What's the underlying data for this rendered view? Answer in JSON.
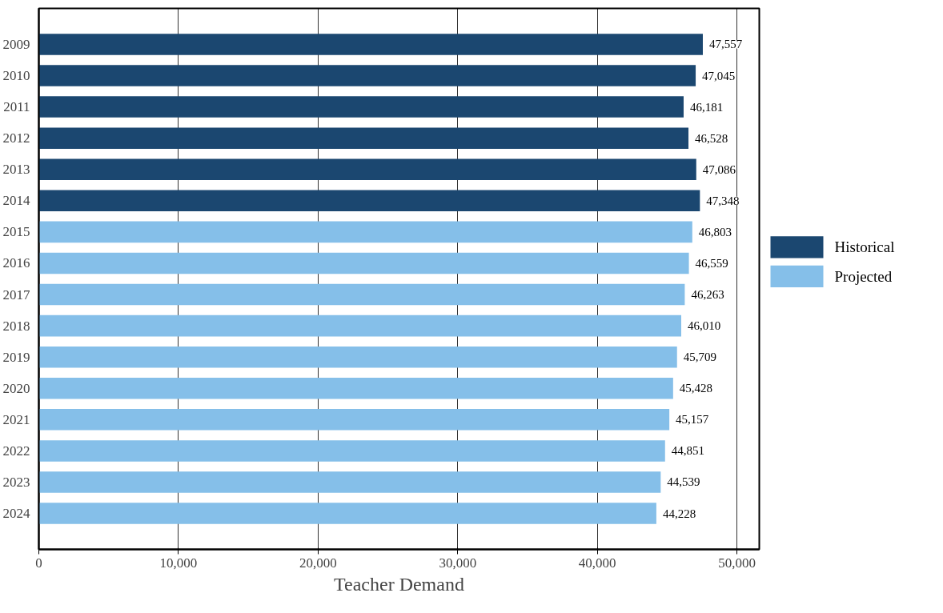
{
  "chart_data": {
    "type": "bar",
    "orientation": "horizontal",
    "xlabel": "Teacher Demand",
    "categories": [
      "2009",
      "2010",
      "2011",
      "2012",
      "2013",
      "2014",
      "2015",
      "2016",
      "2017",
      "2018",
      "2019",
      "2020",
      "2021",
      "2022",
      "2023",
      "2024"
    ],
    "series": [
      {
        "name": "Historical",
        "color": "#1b4770",
        "values": [
          47557,
          47045,
          46181,
          46528,
          47086,
          47348,
          null,
          null,
          null,
          null,
          null,
          null,
          null,
          null,
          null,
          null
        ],
        "value_labels": [
          "47,557",
          "47,045",
          "46,181",
          "46,528",
          "47,086",
          "47,348",
          null,
          null,
          null,
          null,
          null,
          null,
          null,
          null,
          null,
          null
        ]
      },
      {
        "name": "Projected",
        "color": "#85bfe9",
        "values": [
          null,
          null,
          null,
          null,
          null,
          null,
          46803,
          46559,
          46263,
          46010,
          45709,
          45428,
          45157,
          44851,
          44539,
          44228
        ],
        "value_labels": [
          null,
          null,
          null,
          null,
          null,
          null,
          "46,803",
          "46,559",
          "46,263",
          "46,010",
          "45,709",
          "45,428",
          "45,157",
          "44,851",
          "44,539",
          "44,228"
        ]
      }
    ],
    "xlim": [
      0,
      51600
    ],
    "xticks": [
      0,
      {
        "value": 10000,
        "label": "10,000"
      },
      {
        "value": 20000,
        "label": "20,000"
      },
      {
        "value": 30000,
        "label": "30,000"
      },
      {
        "value": 40000,
        "label": "40,000"
      },
      {
        "value": 50000,
        "label": "50,000"
      }
    ],
    "grid": "x",
    "legend": "right"
  }
}
